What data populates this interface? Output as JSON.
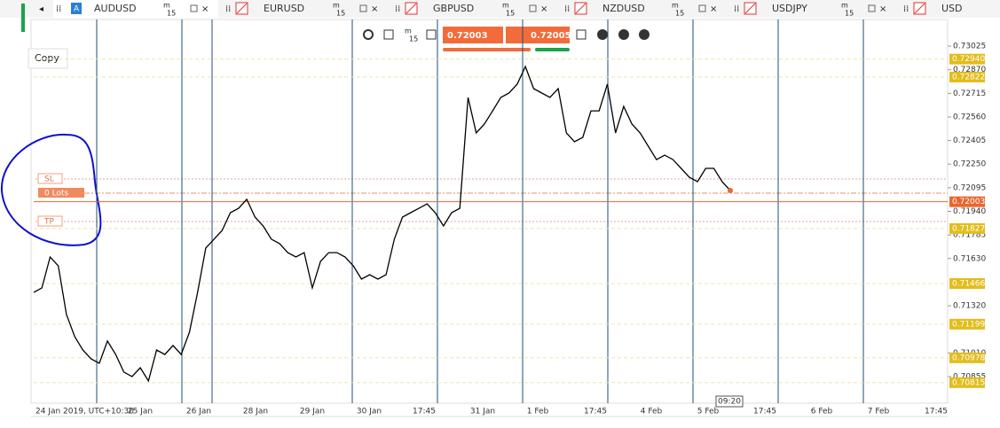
{
  "tabs": [
    {
      "symbol": "AUDUSD",
      "badge": "A",
      "tf_unit": "m",
      "tf_value": "15"
    },
    {
      "symbol": "EURUSD",
      "tf_unit": "m",
      "tf_value": "15"
    },
    {
      "symbol": "GBPUSD",
      "tf_unit": "m",
      "tf_value": "15"
    },
    {
      "symbol": "NZDUSD",
      "tf_unit": "m",
      "tf_value": "15"
    },
    {
      "symbol": "USDJPY",
      "tf_unit": "m",
      "tf_value": "15"
    },
    {
      "symbol": "USD"
    }
  ],
  "toolbar": {
    "tf_unit": "m",
    "tf_value": "15",
    "sell": "0.72003",
    "buy": "0.72005"
  },
  "copy_button": "Copy",
  "order_labels": {
    "sl": "SL",
    "lots": "0 Lots",
    "tp": "TP"
  },
  "chart_data": {
    "type": "line",
    "color": "#000000",
    "values": [
      0.71408,
      0.71437,
      0.7164,
      0.71582,
      0.71262,
      0.71117,
      0.71029,
      0.70971,
      0.70942,
      0.71088,
      0.71,
      0.70884,
      0.70855,
      0.70913,
      0.70826,
      0.71029,
      0.71,
      0.71059,
      0.71,
      0.71146,
      0.71408,
      0.71699,
      0.71757,
      0.71815,
      0.71931,
      0.7196,
      0.72019,
      0.71902,
      0.71844,
      0.71757,
      0.71728,
      0.71669,
      0.7164,
      0.71669,
      0.71437,
      0.71611,
      0.71669,
      0.71669,
      0.7164,
      0.71582,
      0.71495,
      0.71524,
      0.71495,
      0.71524,
      0.71757,
      0.71902,
      0.71931,
      0.7196,
      0.71989,
      0.71931,
      0.71844,
      0.71931,
      0.7196,
      0.72688,
      0.72455,
      0.72513,
      0.726,
      0.72688,
      0.72717,
      0.72775,
      0.72891,
      0.72746,
      0.72717,
      0.72688,
      0.72746,
      0.72455,
      0.72397,
      0.72426,
      0.726,
      0.726,
      0.72775,
      0.72455,
      0.72629,
      0.72513,
      0.72455,
      0.72368,
      0.7228,
      0.72309,
      0.7228,
      0.72222,
      0.72164,
      0.72135,
      0.72222,
      0.72222,
      0.72135,
      0.72077
    ],
    "ylim": [
      0.7068,
      0.732
    ],
    "yticks": [
      0.73025,
      {
        "value": 0.7287,
        "label": "0.72870"
      },
      0.72715,
      {
        "value": 0.7256,
        "label": "0.72560"
      },
      0.72405,
      {
        "value": 0.7225,
        "label": "0.72250"
      },
      0.72095,
      {
        "value": 0.7194,
        "label": "0.71940"
      },
      0.71785,
      {
        "value": 0.7163,
        "label": "0.71630"
      },
      {
        "value": 0.7132,
        "label": "0.71320"
      },
      {
        "value": 0.7101,
        "label": "0.71010"
      },
      0.70855
    ],
    "x_labels": [
      "24 Jan 2019, UTC+10:30",
      "25 Jan",
      "26 Jan",
      "28 Jan",
      "29 Jan",
      "30 Jan",
      "17:45",
      "31 Jan",
      "1 Feb",
      "17:45",
      "4 Feb",
      "5 Feb",
      "17:45",
      "6 Feb",
      "7 Feb",
      "17:45"
    ],
    "price_levels": [
      {
        "value": 0.7294,
        "label": "0.72940"
      },
      {
        "value": 0.72822,
        "label": "0.72822"
      },
      {
        "value": 0.71827,
        "label": "0.71827"
      },
      {
        "value": 0.71466,
        "label": "0.71466"
      },
      {
        "value": 0.71199,
        "label": "0.71199"
      },
      {
        "value": 0.70978,
        "label": "0.70978"
      },
      {
        "value": 0.70815,
        "label": "0.70815"
      }
    ],
    "current_price": {
      "value": 0.72003,
      "label": "0.72003"
    },
    "crosshair_time": "09:20"
  }
}
